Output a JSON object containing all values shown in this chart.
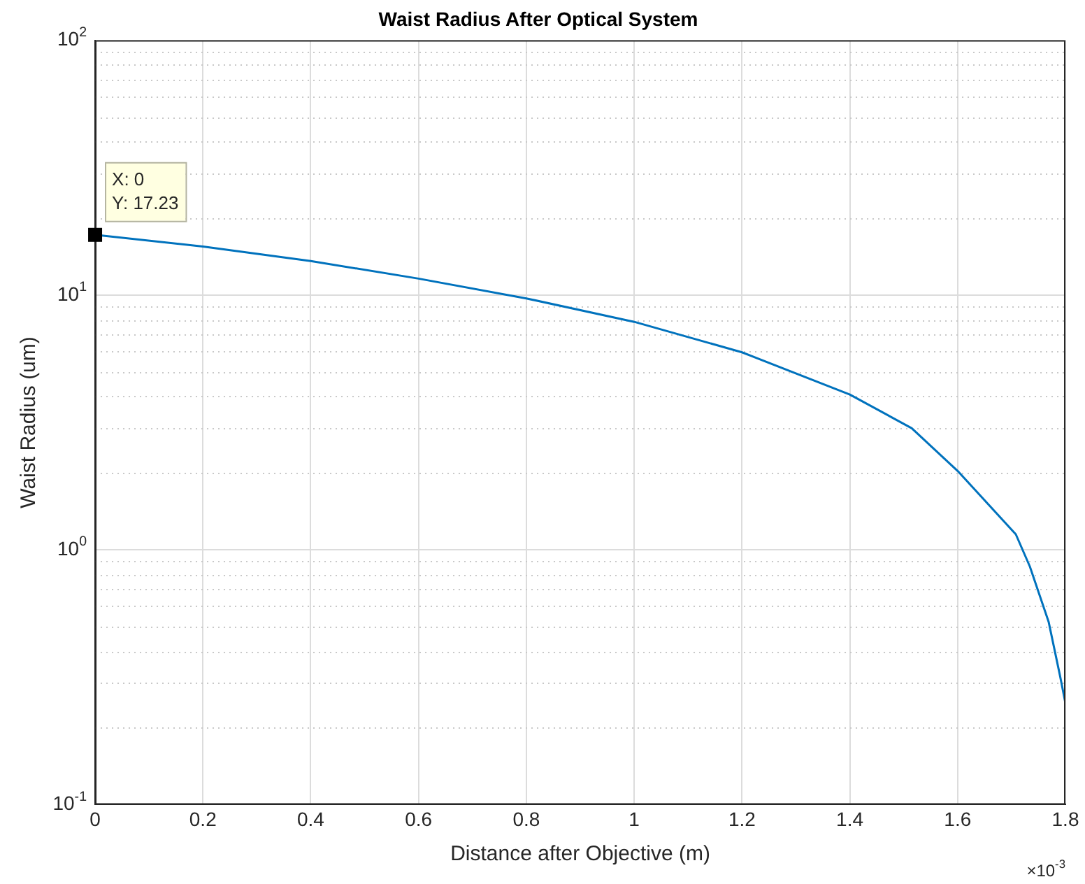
{
  "chart_data": {
    "type": "line",
    "title": "Waist Radius After Optical System",
    "xlabel": "Distance after Objective (m)",
    "ylabel": "Waist Radius (um)",
    "x": [
      0,
      0.2,
      0.4,
      0.6,
      0.8,
      1.0,
      1.2,
      1.4,
      1.515,
      1.6,
      1.708,
      1.734,
      1.769,
      1.79,
      1.8
    ],
    "series": [
      {
        "color": "#0072bd",
        "values": [
          17.23,
          15.5,
          13.6,
          11.6,
          9.7,
          7.85,
          5.96,
          4.07,
          3.0,
          2.04,
          1.15,
          0.86,
          0.52,
          0.32,
          0.25
        ]
      }
    ],
    "log": "y",
    "xlim": [
      0,
      1.8
    ],
    "xticks": [
      0,
      0.2,
      0.4,
      0.6,
      0.8,
      1,
      1.2,
      1.4,
      1.6,
      1.8
    ],
    "ylim": [
      0.1,
      100
    ],
    "yticks": [
      {
        "value": 0.1,
        "label": "10$^{-1}$"
      },
      {
        "value": 1,
        "label": "10$^{0}$"
      },
      {
        "value": 10,
        "label": "10$^{1}$"
      },
      {
        "value": 100,
        "label": "10$^{2}$"
      }
    ],
    "grid": true,
    "legend": false,
    "marker": "none",
    "line_style": "solid",
    "annotations": [
      {
        "text": "X: 0\nY: 17.23",
        "x": 0,
        "y": 17.23
      },
      "×10$^{-3}$"
    ]
  }
}
